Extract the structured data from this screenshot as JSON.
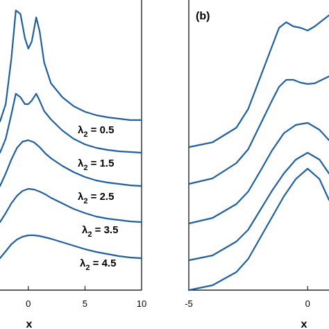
{
  "chart_data": [
    {
      "type": "line",
      "panel": "a",
      "xlabel": "x",
      "x_ticks": [
        0,
        5,
        10
      ],
      "xlim": [
        -2.5,
        10
      ],
      "color": "#1f5fa0",
      "annotations": [
        "λ_2 = 0.5",
        "λ_2 = 1.5",
        "λ_2 = 2.5",
        "λ_2 = 3.5",
        "λ_2 = 4.5"
      ],
      "series": [
        {
          "x": [
            -2.5,
            -2,
            -1.5,
            -1.1,
            -0.7,
            -0.3,
            0,
            0.3,
            0.7,
            1,
            1.4,
            2,
            3,
            4,
            5,
            6,
            7,
            8,
            9,
            10
          ],
          "y": [
            0.0,
            0.25,
            0.9,
            1.6,
            1.55,
            1.2,
            1.05,
            1.15,
            1.5,
            1.3,
            0.85,
            0.55,
            0.35,
            0.22,
            0.14,
            0.09,
            0.06,
            0.04,
            0.02,
            0.02
          ]
        },
        {
          "x": [
            -2.5,
            -2,
            -1.5,
            -1.1,
            -0.7,
            -0.3,
            0,
            0.3,
            0.7,
            1,
            1.4,
            2,
            3,
            4,
            5,
            6,
            7,
            8,
            9,
            10
          ],
          "y": [
            0.0,
            0.2,
            0.55,
            0.85,
            0.8,
            0.7,
            0.7,
            0.75,
            0.85,
            0.75,
            0.6,
            0.48,
            0.32,
            0.2,
            0.12,
            0.07,
            0.04,
            0.02,
            0.01,
            0.0
          ]
        },
        {
          "x": [
            -2.5,
            -2,
            -1.5,
            -1,
            -0.5,
            0,
            0.5,
            1,
            1.5,
            2,
            3,
            4,
            5,
            6,
            7,
            8,
            9,
            10
          ],
          "y": [
            0.0,
            0.18,
            0.38,
            0.55,
            0.64,
            0.66,
            0.63,
            0.56,
            0.47,
            0.4,
            0.29,
            0.2,
            0.13,
            0.08,
            0.05,
            0.03,
            0.01,
            0.0
          ]
        },
        {
          "x": [
            -2.5,
            -2,
            -1.5,
            -1,
            -0.5,
            0,
            0.5,
            1,
            1.5,
            2,
            3,
            4,
            5,
            6,
            7,
            8,
            9,
            10
          ],
          "y": [
            0.0,
            0.13,
            0.27,
            0.38,
            0.45,
            0.48,
            0.47,
            0.44,
            0.4,
            0.35,
            0.27,
            0.19,
            0.13,
            0.08,
            0.05,
            0.03,
            0.01,
            0.0
          ]
        },
        {
          "x": [
            -2.5,
            -2,
            -1.5,
            -1,
            -0.5,
            0,
            0.5,
            1,
            1.5,
            2,
            3,
            4,
            5,
            6,
            7,
            8,
            9,
            10
          ],
          "y": [
            0.0,
            0.1,
            0.2,
            0.27,
            0.31,
            0.33,
            0.33,
            0.32,
            0.3,
            0.28,
            0.23,
            0.18,
            0.13,
            0.09,
            0.06,
            0.03,
            0.01,
            0.0
          ]
        }
      ]
    },
    {
      "type": "line",
      "panel": "b",
      "title": "(b)",
      "xlabel": "x",
      "x_ticks": [
        -5,
        0
      ],
      "xlim": [
        -5,
        0.9
      ],
      "color": "#1f5fa0",
      "series": [
        {
          "x": [
            -5,
            -4,
            -3,
            -2.5,
            -2,
            -1.5,
            -1.2,
            -0.9,
            -0.6,
            -0.3,
            0,
            0.3,
            0.6,
            0.9
          ],
          "y": [
            0.0,
            0.07,
            0.28,
            0.55,
            1.0,
            1.45,
            1.72,
            1.8,
            1.74,
            1.72,
            1.68,
            1.74,
            1.82,
            1.9
          ]
        },
        {
          "x": [
            -5,
            -4,
            -3,
            -2.5,
            -2,
            -1.5,
            -1.2,
            -0.9,
            -0.6,
            -0.3,
            0,
            0.3,
            0.6,
            0.9
          ],
          "y": [
            0.0,
            0.08,
            0.3,
            0.5,
            0.85,
            1.2,
            1.4,
            1.5,
            1.5,
            1.46,
            1.44,
            1.45,
            1.5,
            1.55
          ]
        },
        {
          "x": [
            -5,
            -4,
            -3,
            -2.5,
            -2,
            -1.5,
            -1,
            -0.5,
            0,
            0.5,
            0.9
          ],
          "y": [
            0.0,
            0.08,
            0.28,
            0.46,
            0.75,
            1.05,
            1.3,
            1.42,
            1.45,
            1.35,
            1.2
          ]
        },
        {
          "x": [
            -5,
            -4,
            -3,
            -2.5,
            -2,
            -1.5,
            -1,
            -0.5,
            0,
            0.5,
            0.9
          ],
          "y": [
            0.0,
            0.07,
            0.27,
            0.44,
            0.72,
            1.0,
            1.25,
            1.45,
            1.55,
            1.45,
            1.25
          ]
        },
        {
          "x": [
            -5,
            -4,
            -3,
            -2.5,
            -2,
            -1.5,
            -1,
            -0.5,
            0,
            0.5,
            0.9
          ],
          "y": [
            0.0,
            0.07,
            0.26,
            0.45,
            0.75,
            1.05,
            1.35,
            1.6,
            1.75,
            1.6,
            1.3
          ]
        }
      ]
    }
  ]
}
